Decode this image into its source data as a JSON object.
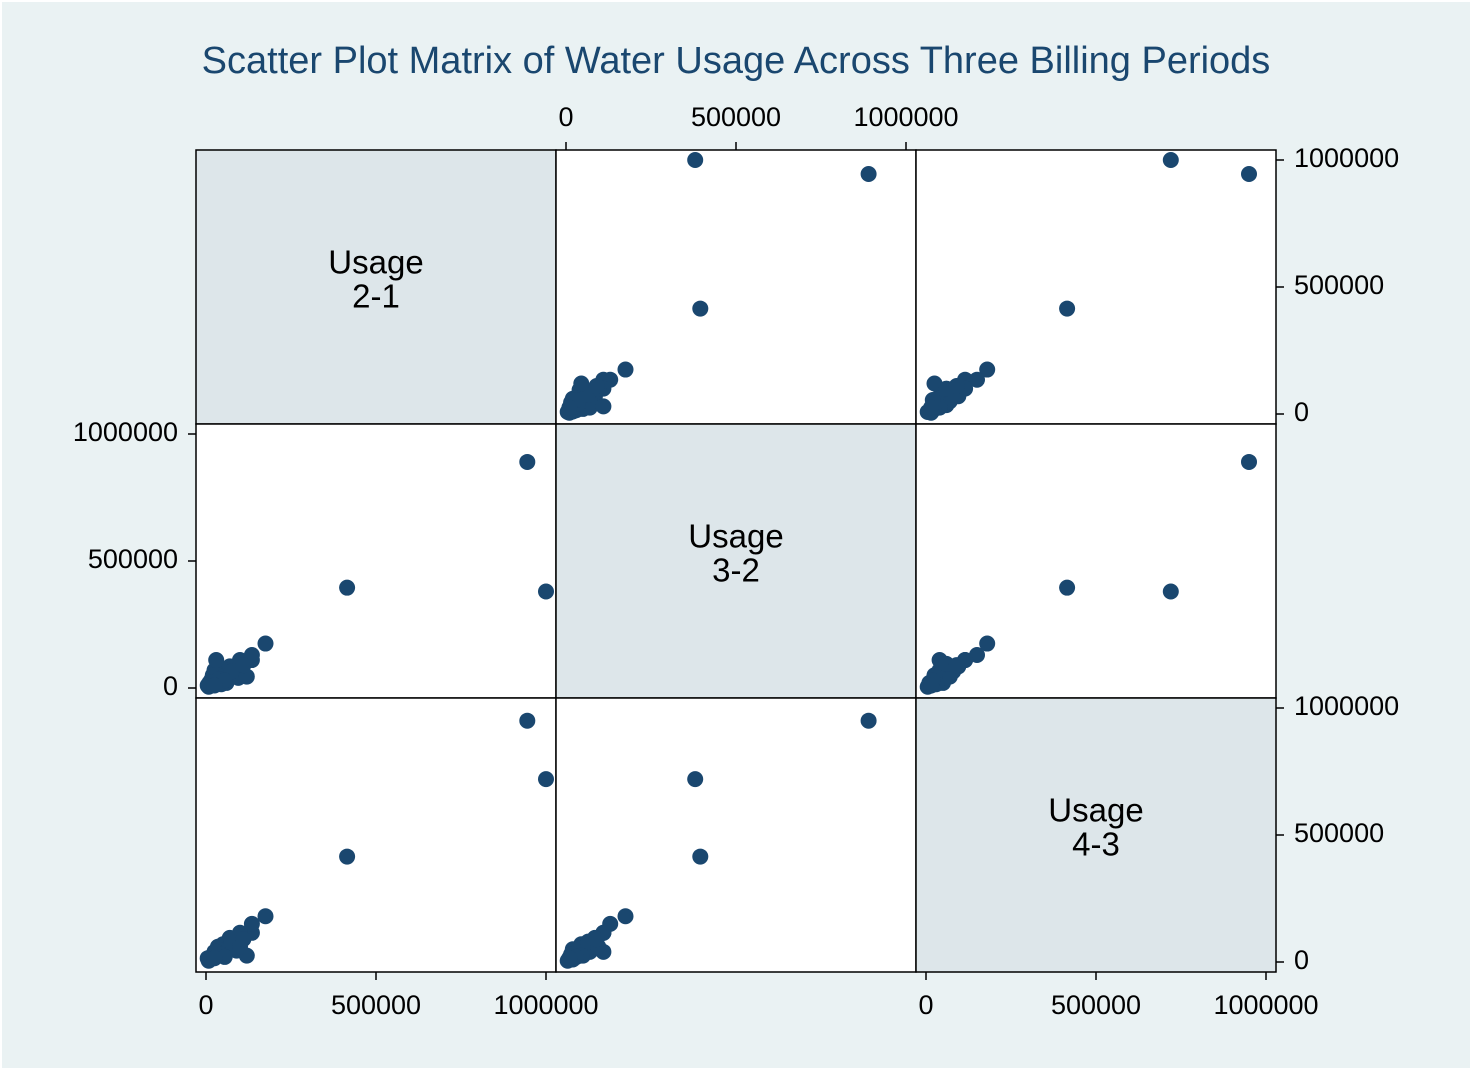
{
  "chart_data": {
    "type": "scatter",
    "title": "Scatter Plot Matrix of Water Usage Across Three Billing Periods",
    "variables": [
      {
        "name": "usage_2_1",
        "label_lines": [
          "Usage",
          "2-1"
        ]
      },
      {
        "name": "usage_3_2",
        "label_lines": [
          "Usage",
          "3-2"
        ]
      },
      {
        "name": "usage_4_3",
        "label_lines": [
          "Usage",
          "4-3"
        ]
      }
    ],
    "axis": {
      "min": 0,
      "max": 1000000,
      "ticks": [
        0,
        500000,
        1000000
      ],
      "tick_labels": [
        "0",
        "500000",
        "1000000"
      ],
      "grid": false
    },
    "observations": [
      {
        "usage_2_1": 1000000,
        "usage_3_2": 380000,
        "usage_4_3": 720000
      },
      {
        "usage_2_1": 945000,
        "usage_3_2": 890000,
        "usage_4_3": 950000
      },
      {
        "usage_2_1": 415000,
        "usage_3_2": 395000,
        "usage_4_3": 415000
      },
      {
        "usage_2_1": 175000,
        "usage_3_2": 175000,
        "usage_4_3": 180000
      },
      {
        "usage_2_1": 135000,
        "usage_3_2": 110000,
        "usage_4_3": 115000
      },
      {
        "usage_2_1": 135000,
        "usage_3_2": 130000,
        "usage_4_3": 150000
      },
      {
        "usage_2_1": 100000,
        "usage_3_2": 110000,
        "usage_4_3": 115000
      },
      {
        "usage_2_1": 85000,
        "usage_3_2": 80000,
        "usage_4_3": 75000
      },
      {
        "usage_2_1": 70000,
        "usage_3_2": 85000,
        "usage_4_3": 95000
      },
      {
        "usage_2_1": 55000,
        "usage_3_2": 70000,
        "usage_4_3": 65000
      },
      {
        "usage_2_1": 65000,
        "usage_3_2": 40000,
        "usage_4_3": 45000
      },
      {
        "usage_2_1": 45000,
        "usage_3_2": 60000,
        "usage_4_3": 55000
      },
      {
        "usage_2_1": 35000,
        "usage_3_2": 55000,
        "usage_4_3": 60000
      },
      {
        "usage_2_1": 25000,
        "usage_3_2": 70000,
        "usage_4_3": 40000
      },
      {
        "usage_2_1": 15000,
        "usage_3_2": 30000,
        "usage_4_3": 20000
      },
      {
        "usage_2_1": 20000,
        "usage_3_2": 50000,
        "usage_4_3": 25000
      },
      {
        "usage_2_1": 10000,
        "usage_3_2": 20000,
        "usage_4_3": 10000
      },
      {
        "usage_2_1": 5000,
        "usage_3_2": 10000,
        "usage_4_3": 15000
      },
      {
        "usage_2_1": 8000,
        "usage_3_2": 5000,
        "usage_4_3": 5000
      },
      {
        "usage_2_1": 30000,
        "usage_3_2": 25000,
        "usage_4_3": 30000
      },
      {
        "usage_2_1": 50000,
        "usage_3_2": 45000,
        "usage_4_3": 70000
      },
      {
        "usage_2_1": 40000,
        "usage_3_2": 35000,
        "usage_4_3": 35000
      },
      {
        "usage_2_1": 90000,
        "usage_3_2": 60000,
        "usage_4_3": 45000
      },
      {
        "usage_2_1": 60000,
        "usage_3_2": 20000,
        "usage_4_3": 50000
      },
      {
        "usage_2_1": 95000,
        "usage_3_2": 40000,
        "usage_4_3": 55000
      },
      {
        "usage_2_1": 75000,
        "usage_3_2": 65000,
        "usage_4_3": 80000
      },
      {
        "usage_2_1": 30000,
        "usage_3_2": 110000,
        "usage_4_3": 40000
      },
      {
        "usage_2_1": 45000,
        "usage_3_2": 15000,
        "usage_4_3": 30000
      },
      {
        "usage_2_1": 120000,
        "usage_3_2": 45000,
        "usage_4_3": 25000
      },
      {
        "usage_2_1": 100000,
        "usage_3_2": 95000,
        "usage_4_3": 60000
      },
      {
        "usage_2_1": 110000,
        "usage_3_2": 90000,
        "usage_4_3": 90000
      },
      {
        "usage_2_1": 55000,
        "usage_3_2": 30000,
        "usage_4_3": 20000
      },
      {
        "usage_2_1": 25000,
        "usage_3_2": 10000,
        "usage_4_3": 15000
      }
    ],
    "marker_color": "#1a476f",
    "diagonal_fill": "#dde6ea",
    "plot_fill": "#ffffff",
    "background": "#eaf2f3"
  }
}
